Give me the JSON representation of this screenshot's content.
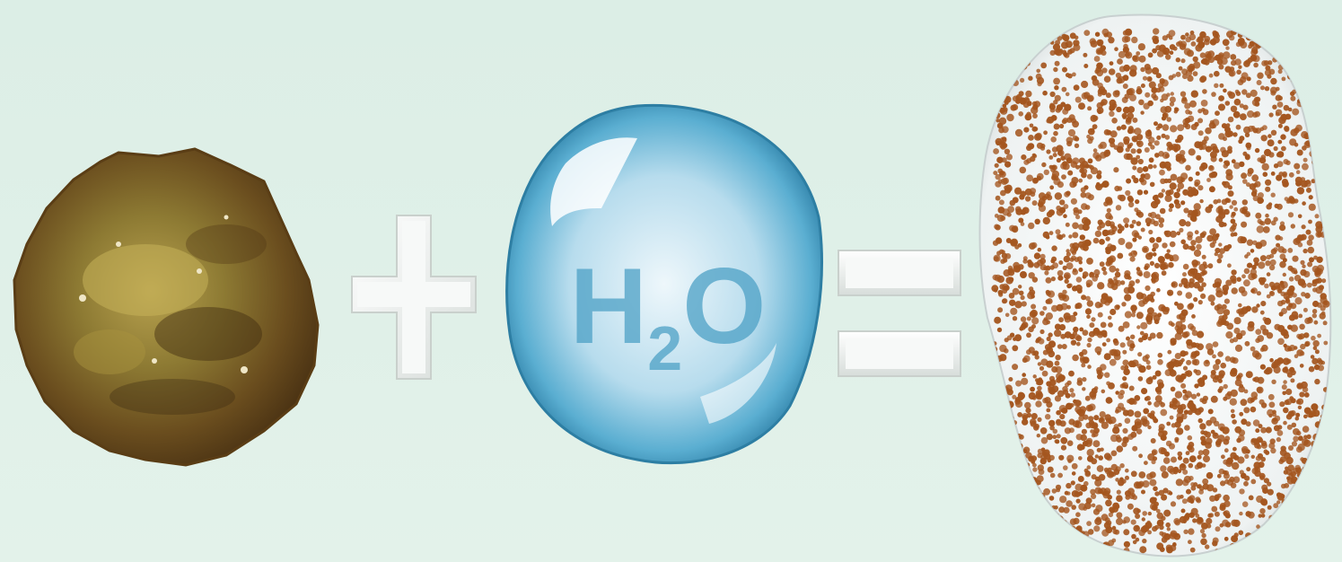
{
  "equation": {
    "operand_1": {
      "icon": "dry-lump-icon"
    },
    "operator_1": {
      "symbol": "+",
      "icon": "plus-icon"
    },
    "operand_2": {
      "icon": "water-drop-icon",
      "label": "H2O",
      "label_main": "H",
      "label_subscript": "2",
      "label_tail": "O"
    },
    "operator_2": {
      "symbol": "=",
      "icon": "equals-icon"
    },
    "result": {
      "icon": "granule-puddle-icon"
    }
  },
  "colors": {
    "background": "#dfefe7",
    "lump": "#8a6a2c",
    "water": "#4fa3c6",
    "granules": "#a4561f",
    "puddle": "#f4f6f6"
  }
}
